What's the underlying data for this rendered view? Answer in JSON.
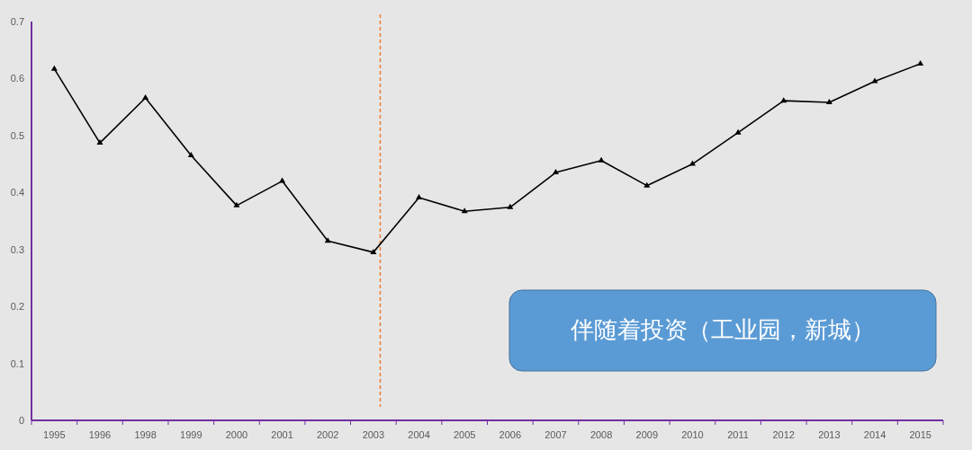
{
  "chart_data": {
    "type": "line",
    "categories": [
      "1995",
      "1996",
      "1998",
      "1999",
      "2000",
      "2001",
      "2002",
      "2003",
      "2004",
      "2005",
      "2006",
      "2007",
      "2008",
      "2009",
      "2010",
      "2011",
      "2012",
      "2013",
      "2014",
      "2015"
    ],
    "series": [
      {
        "color": "#000000",
        "values": [
          0.617,
          0.487,
          0.566,
          0.465,
          0.377,
          0.42,
          0.315,
          0.295,
          0.391,
          0.367,
          0.374,
          0.435,
          0.456,
          0.412,
          0.45,
          0.505,
          0.561,
          0.558,
          0.595,
          0.626
        ]
      }
    ],
    "ylim": [
      0,
      0.7
    ],
    "yticks": [
      0,
      0.1,
      0.2,
      0.3,
      0.4,
      0.5,
      0.6,
      0.7
    ],
    "marker": "triangle",
    "line_style": "solid",
    "ref_lines": [
      {
        "axis": "x",
        "value": "2003",
        "color": "#ed7d31",
        "line_style": "dashed"
      }
    ],
    "annotations": [
      "伴随着投资（工业园，新城）"
    ]
  }
}
